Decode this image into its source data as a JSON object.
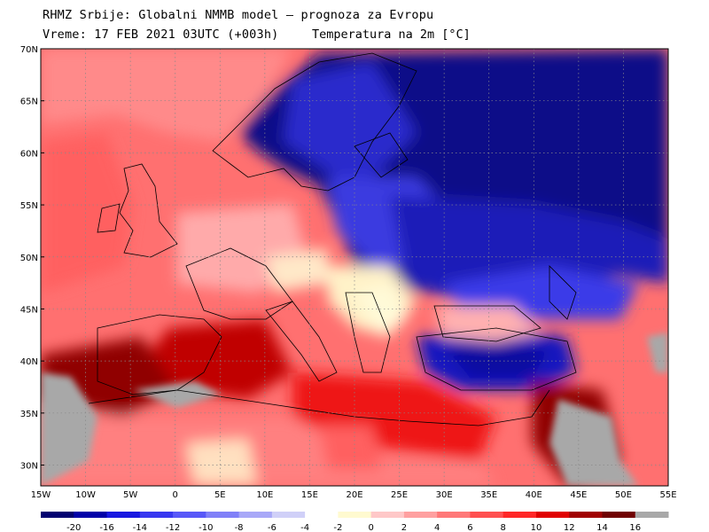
{
  "header": {
    "line1": "RHMZ Srbije: Globalni NMMB model — prognoza za Evropu",
    "line2": "Vreme: 17 FEB 2021 03UTC (+003h)",
    "line3": "Temperatura na 2m [°C]"
  },
  "map": {
    "lon_range": [
      -15,
      55
    ],
    "lat_range": [
      28,
      70
    ],
    "lat_labels": [
      "70N",
      "65N",
      "60N",
      "55N",
      "50N",
      "45N",
      "40N",
      "35N",
      "30N"
    ],
    "lat_values": [
      70,
      65,
      60,
      55,
      50,
      45,
      40,
      35,
      30
    ],
    "lon_labels": [
      "15W",
      "10W",
      "5W",
      "0",
      "5E",
      "10E",
      "15E",
      "20E",
      "25E",
      "30E",
      "35E",
      "40E",
      "45E",
      "50E",
      "55E"
    ],
    "lon_values": [
      -15,
      -10,
      -5,
      0,
      5,
      10,
      15,
      20,
      25,
      30,
      35,
      40,
      45,
      50,
      55
    ],
    "grid": "dotted"
  },
  "legend": {
    "labels": [
      "-20",
      "-16",
      "-14",
      "-12",
      "-10",
      "-8",
      "-6",
      "-4",
      "-2",
      "0",
      "2",
      "4",
      "6",
      "8",
      "10",
      "12",
      "14",
      "16"
    ],
    "colors": [
      "#000070",
      "#0000a8",
      "#1818e0",
      "#3838f0",
      "#5858f8",
      "#8080f8",
      "#a8a8f8",
      "#d0d0f8",
      "#ffffff",
      "#fffad0",
      "#ffc8c8",
      "#ffa0a0",
      "#ff7878",
      "#ff5050",
      "#ff2828",
      "#e00000",
      "#a00000",
      "#700000",
      "#a8a8a8"
    ]
  }
}
